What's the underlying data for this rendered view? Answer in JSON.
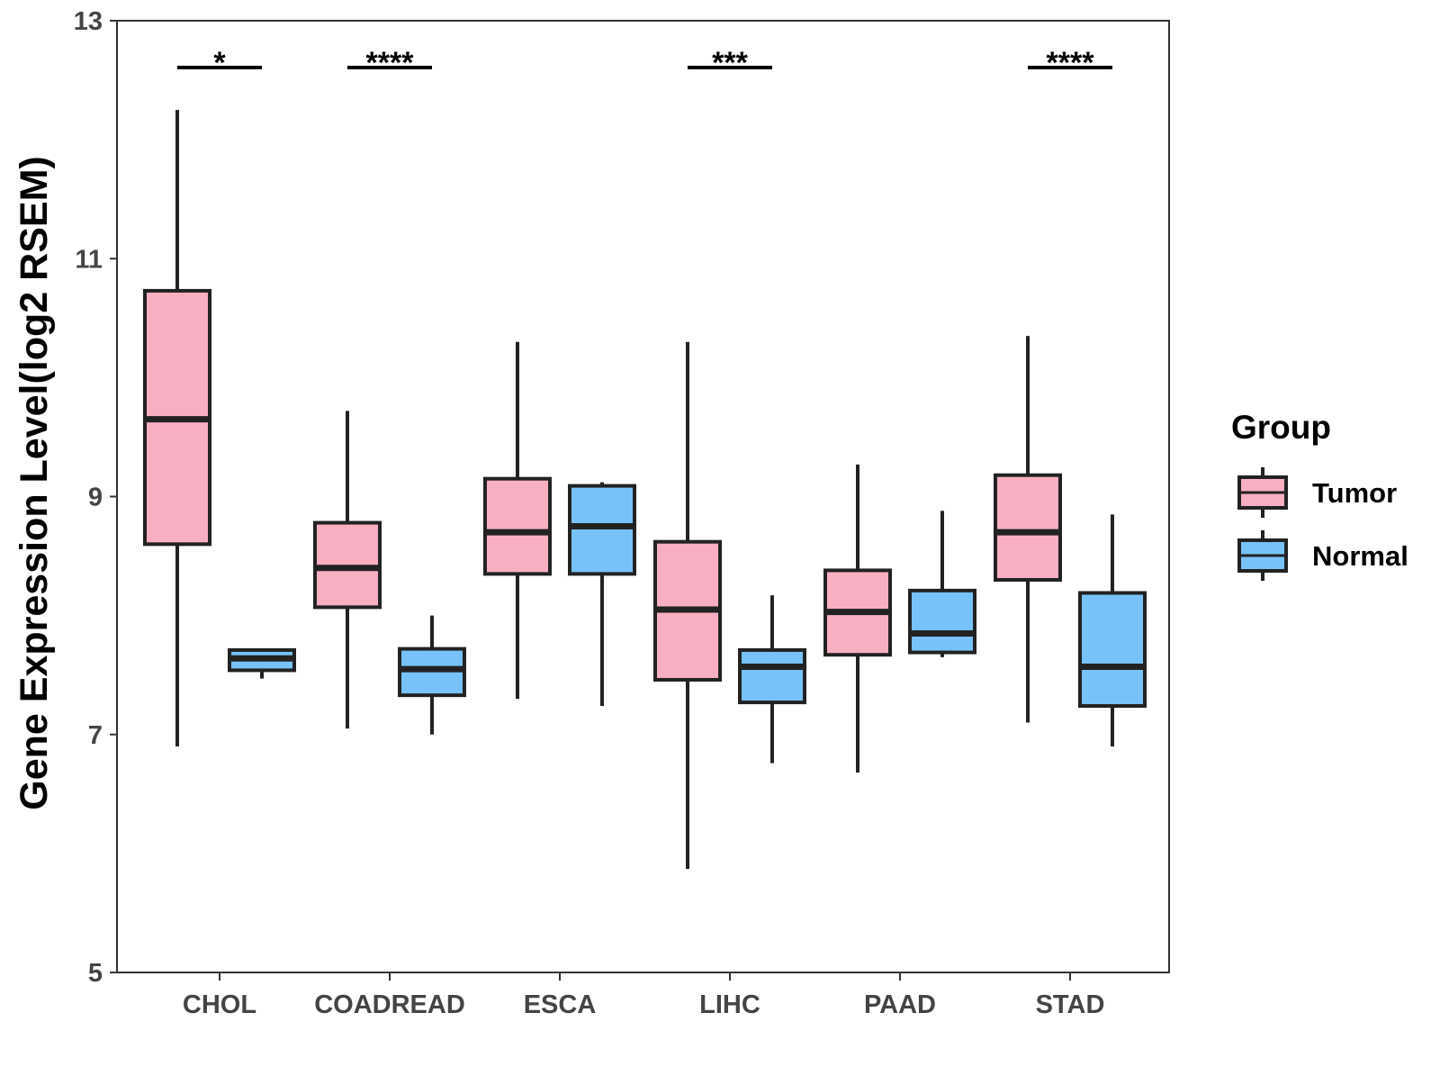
{
  "chart_data": {
    "type": "boxplot",
    "title": "",
    "xlabel": "",
    "ylabel": "Gene Expression Level(log2 RSEM)",
    "ylim": [
      5,
      13
    ],
    "yticks": [
      5,
      7,
      9,
      11,
      13
    ],
    "grid": false,
    "categories": [
      "CHOL",
      "COADREAD",
      "ESCA",
      "LIHC",
      "PAAD",
      "STAD"
    ],
    "series": [
      {
        "name": "Tumor",
        "color": "#F9AFC2",
        "boxes": [
          {
            "min": 6.9,
            "q1": 8.6,
            "median": 9.65,
            "q3": 10.73,
            "max": 12.25
          },
          {
            "min": 7.05,
            "q1": 8.07,
            "median": 8.4,
            "q3": 8.78,
            "max": 9.72
          },
          {
            "min": 7.3,
            "q1": 8.35,
            "median": 8.7,
            "q3": 9.15,
            "max": 10.3
          },
          {
            "min": 5.87,
            "q1": 7.46,
            "median": 8.05,
            "q3": 8.62,
            "max": 10.3
          },
          {
            "min": 6.68,
            "q1": 7.67,
            "median": 8.03,
            "q3": 8.38,
            "max": 9.27
          },
          {
            "min": 7.1,
            "q1": 8.3,
            "median": 8.7,
            "q3": 9.18,
            "max": 10.35
          }
        ]
      },
      {
        "name": "Normal",
        "color": "#77C3F9",
        "boxes": [
          {
            "min": 7.47,
            "q1": 7.54,
            "median": 7.64,
            "q3": 7.71,
            "max": 7.71
          },
          {
            "min": 7.0,
            "q1": 7.33,
            "median": 7.55,
            "q3": 7.72,
            "max": 8.0
          },
          {
            "min": 7.24,
            "q1": 8.35,
            "median": 8.75,
            "q3": 9.09,
            "max": 9.12
          },
          {
            "min": 6.76,
            "q1": 7.27,
            "median": 7.57,
            "q3": 7.71,
            "max": 8.17
          },
          {
            "min": 7.65,
            "q1": 7.69,
            "median": 7.85,
            "q3": 8.21,
            "max": 8.88
          },
          {
            "min": 6.9,
            "q1": 7.24,
            "median": 7.57,
            "q3": 8.19,
            "max": 8.85
          }
        ]
      }
    ],
    "significance": [
      {
        "category": "CHOL",
        "label": "*"
      },
      {
        "category": "COADREAD",
        "label": "****"
      },
      {
        "category": "ESCA",
        "label": ""
      },
      {
        "category": "LIHC",
        "label": "***"
      },
      {
        "category": "PAAD",
        "label": ""
      },
      {
        "category": "STAD",
        "label": "****"
      }
    ],
    "legend": {
      "title": "Group",
      "position": "right",
      "entries": [
        "Tumor",
        "Normal"
      ]
    }
  }
}
